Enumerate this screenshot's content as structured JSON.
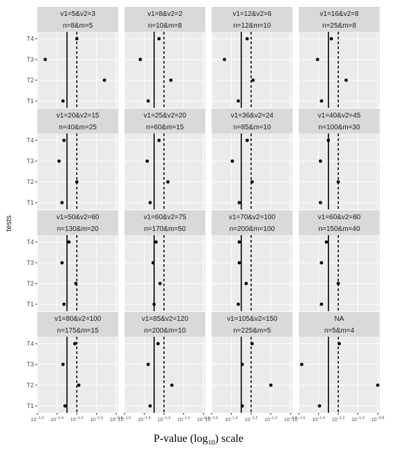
{
  "chart_data": {
    "type": "scatter",
    "xlabel_prefix": "P-value (log",
    "xlabel_sub": "10",
    "xlabel_suffix": ") scale",
    "ylabel": "tests",
    "categories": [
      "T1",
      "T2",
      "T3",
      "T4"
    ],
    "xticks": [
      {
        "base": "10",
        "exp": "−1.6",
        "value": -1.6
      },
      {
        "base": "10",
        "exp": "−1.4",
        "value": -1.4
      },
      {
        "base": "10",
        "exp": "−1.2",
        "value": -1.2
      },
      {
        "base": "10",
        "exp": "−1.0",
        "value": -1.0
      },
      {
        "base": "10",
        "exp": "−0.8",
        "value": -0.8
      }
    ],
    "xlim": [
      -1.6,
      -0.78
    ],
    "ref_solid": -1.3,
    "ref_dashed": -1.2,
    "panels": [
      {
        "line1": "v1=5&v2=3",
        "line2": "n=8&m=5",
        "values": [
          -1.34,
          -0.92,
          -1.52,
          -1.2
        ]
      },
      {
        "line1": "v1=8&v2=2",
        "line2": "n=10&m=8",
        "values": [
          -1.36,
          -1.13,
          -1.44,
          -1.25
        ]
      },
      {
        "line1": "v1=12&v2=6",
        "line2": "n=12&m=10",
        "values": [
          -1.33,
          -1.18,
          -1.47,
          -1.24
        ]
      },
      {
        "line1": "v1=16&v2=8",
        "line2": "n=25&m=8",
        "values": [
          -1.37,
          -1.12,
          -1.41,
          -1.27
        ]
      },
      {
        "line1": "v1=20&v2=15",
        "line2": "n=40&m=25",
        "values": [
          -1.35,
          -1.2,
          -1.38,
          -1.33
        ]
      },
      {
        "line1": "v1=25&v2=20",
        "line2": "n=60&m=15",
        "values": [
          -1.34,
          -1.16,
          -1.37,
          -1.25
        ]
      },
      {
        "line1": "v1=36&v2=24",
        "line2": "n=85&m=10",
        "values": [
          -1.32,
          -1.19,
          -1.39,
          -1.24
        ]
      },
      {
        "line1": "v1=40&v2=45",
        "line2": "n=100&m=30",
        "values": [
          -1.38,
          -1.2,
          -1.38,
          -1.3
        ]
      },
      {
        "line1": "v1=50&v2=60",
        "line2": "n=130&m=20",
        "values": [
          -1.33,
          -1.21,
          -1.35,
          -1.28
        ]
      },
      {
        "line1": "v1=60&v2=75",
        "line2": "n=170&m=50",
        "values": [
          -1.3,
          -1.24,
          -1.31,
          -1.28
        ]
      },
      {
        "line1": "v1=70&v2=100",
        "line2": "n=200&m=100",
        "values": [
          -1.33,
          -1.25,
          -1.32,
          -1.32
        ]
      },
      {
        "line1": "v1=60&v2=80",
        "line2": "n=150&m=40",
        "values": [
          -1.37,
          -1.2,
          -1.37,
          -1.32
        ]
      },
      {
        "line1": "v1=80&v2=100",
        "line2": "n=175&m=15",
        "values": [
          -1.32,
          -1.18,
          -1.34,
          -1.22
        ]
      },
      {
        "line1": "v1=85&v2=120",
        "line2": "n=200&m=10",
        "values": [
          -1.34,
          -1.12,
          -1.36,
          -1.26
        ]
      },
      {
        "line1": "v1=105&v2=150",
        "line2": "n=225&m=5",
        "values": [
          -1.29,
          -1.0,
          -1.29,
          -1.19
        ]
      },
      {
        "line1": "NA",
        "line2": "n=5&m=4",
        "values": [
          -1.39,
          -0.8,
          -1.57,
          -1.19
        ]
      }
    ]
  }
}
